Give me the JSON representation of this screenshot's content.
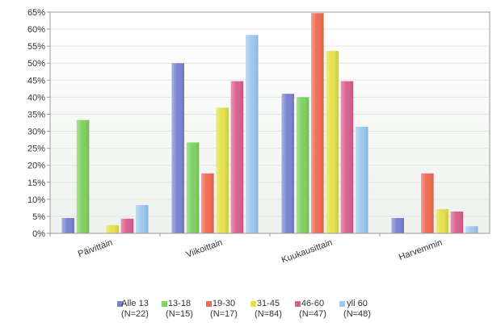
{
  "chart_data": {
    "type": "bar",
    "categories": [
      "Päivittäin",
      "Viikoittain",
      "Kuukausittain",
      "Harvemmin"
    ],
    "series": [
      {
        "name": "Alle 13",
        "n_label": "(N=22)",
        "color": "#7b83d1",
        "values": [
          4.5,
          50,
          41,
          4.5
        ]
      },
      {
        "name": "13-18",
        "n_label": "(N=15)",
        "color": "#7fd162",
        "values": [
          33.3,
          26.7,
          40,
          0
        ]
      },
      {
        "name": "19-30",
        "n_label": "(N=17)",
        "color": "#ef6b52",
        "values": [
          0,
          17.6,
          64.7,
          17.6
        ]
      },
      {
        "name": "31-45",
        "n_label": "(N=84)",
        "color": "#e3e14c",
        "values": [
          2.4,
          36.9,
          53.6,
          7.1
        ]
      },
      {
        "name": "46-60",
        "n_label": "(N=47)",
        "color": "#d9608e",
        "values": [
          4.3,
          44.7,
          44.7,
          6.4
        ]
      },
      {
        "name": "yli 60",
        "n_label": "(N=48)",
        "color": "#9fc8ee",
        "values": [
          8.3,
          58.3,
          31.3,
          2.1
        ]
      }
    ],
    "ylim": [
      0,
      65
    ],
    "yticks": [
      "0%",
      "5%",
      "10%",
      "15%",
      "20%",
      "25%",
      "30%",
      "35%",
      "40%",
      "45%",
      "50%",
      "55%",
      "60%",
      "65%"
    ],
    "grid": true,
    "legend_position": "bottom"
  }
}
